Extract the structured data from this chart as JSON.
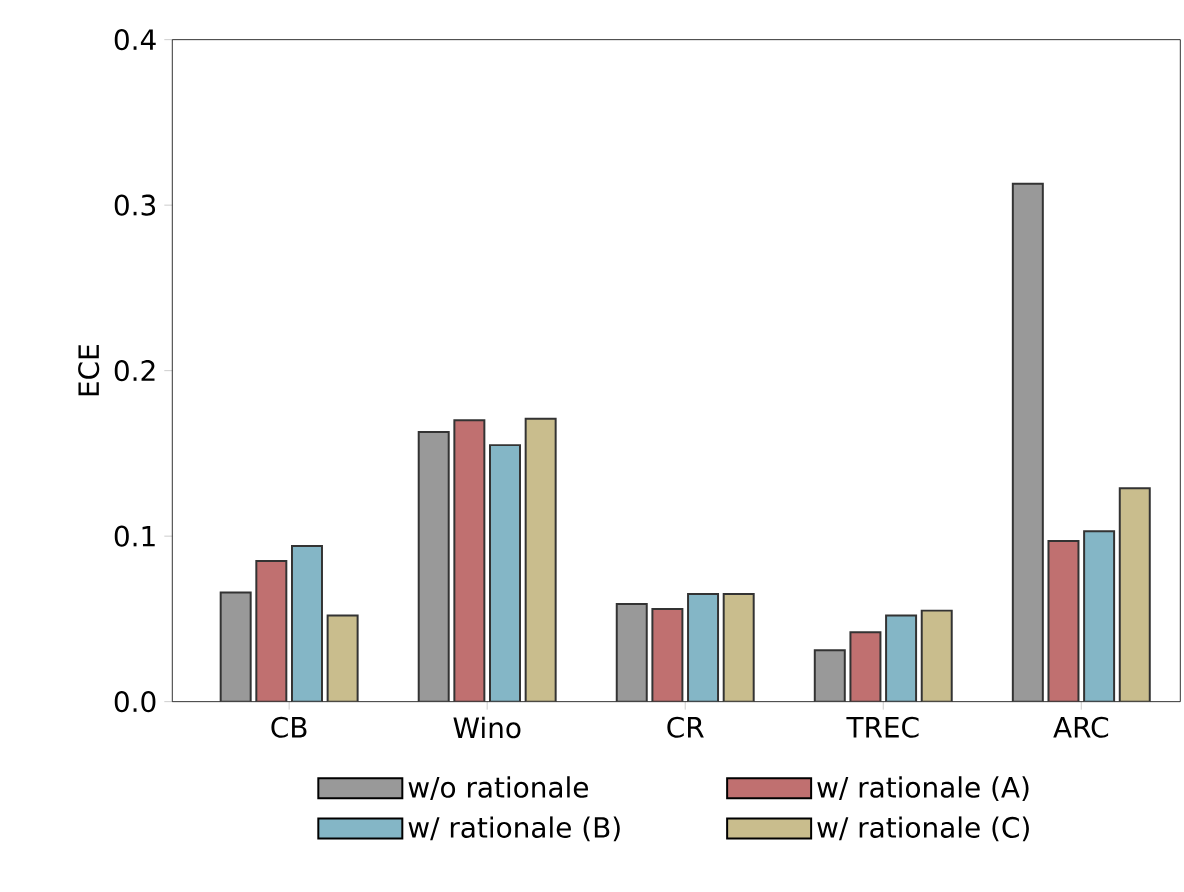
{
  "chart_data": {
    "type": "bar",
    "ylabel": "ECE",
    "categories": [
      "CB",
      "Wino",
      "CR",
      "TREC",
      "ARC"
    ],
    "series": [
      {
        "name": "w/o rationale",
        "color": "#999999",
        "values": [
          0.066,
          0.163,
          0.059,
          0.031,
          0.313
        ]
      },
      {
        "name": "w/ rationale (A)",
        "color": "#c07070",
        "values": [
          0.085,
          0.17,
          0.056,
          0.042,
          0.097
        ]
      },
      {
        "name": "w/ rationale (B)",
        "color": "#84b6c6",
        "values": [
          0.094,
          0.155,
          0.065,
          0.052,
          0.103
        ]
      },
      {
        "name": "w/ rationale (C)",
        "color": "#c9bd8d",
        "values": [
          0.052,
          0.171,
          0.065,
          0.055,
          0.129
        ]
      }
    ],
    "ylim": [
      0,
      0.4
    ],
    "yticks": [
      {
        "value": 0,
        "label": "0.0"
      },
      {
        "value": 0.1,
        "label": "0.1"
      },
      {
        "value": 0.2,
        "label": "0.2"
      },
      {
        "value": 0.3,
        "label": "0.3"
      },
      {
        "value": 0.4,
        "label": "0.4"
      }
    ],
    "legend": "bottom",
    "grid": false
  }
}
